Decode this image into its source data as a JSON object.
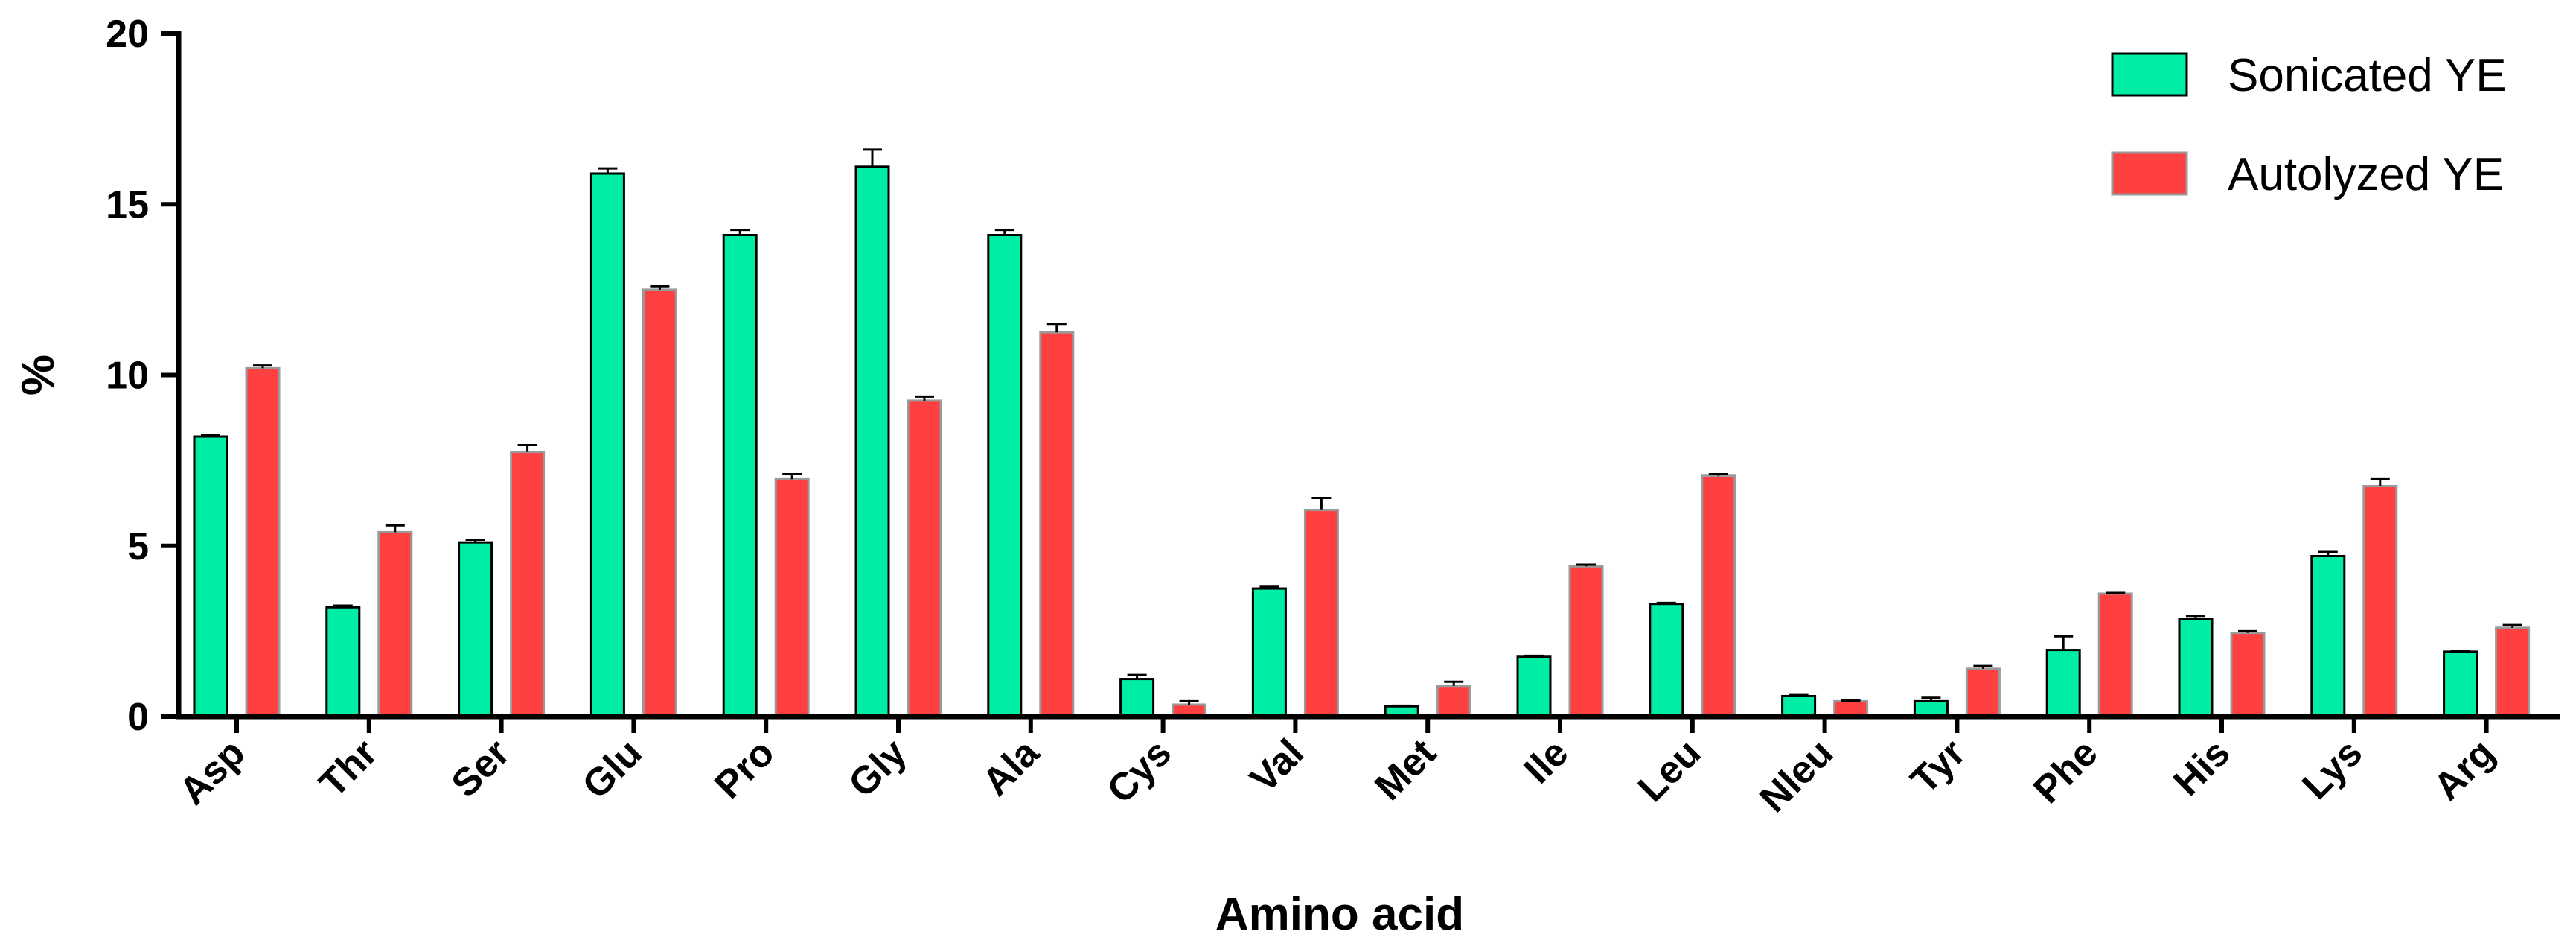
{
  "chart_data": {
    "type": "bar",
    "title": "",
    "xlabel": "Amino acid",
    "ylabel": "%",
    "ylim": [
      0,
      20
    ],
    "yticks": [
      0,
      5,
      10,
      15,
      20
    ],
    "categories": [
      "Asp",
      "Thr",
      "Ser",
      "Glu",
      "Pro",
      "Gly",
      "Ala",
      "Cys",
      "Val",
      "Met",
      "Ile",
      "Leu",
      "Nleu",
      "Tyr",
      "Phe",
      "His",
      "Lys",
      "Arg"
    ],
    "series": [
      {
        "name": "Sonicated YE",
        "color": "#00EDA5",
        "values": [
          8.2,
          3.2,
          5.1,
          15.9,
          14.1,
          16.1,
          14.1,
          1.1,
          3.75,
          0.3,
          1.75,
          3.3,
          0.6,
          0.45,
          1.95,
          2.85,
          4.7,
          1.9
        ],
        "errors": [
          0.05,
          0.05,
          0.08,
          0.15,
          0.15,
          0.5,
          0.15,
          0.12,
          0.05,
          0.02,
          0.03,
          0.03,
          0.03,
          0.1,
          0.4,
          0.1,
          0.12,
          0.03
        ]
      },
      {
        "name": "Autolyzed YE",
        "color": "#FF4040",
        "values": [
          10.2,
          5.4,
          7.75,
          12.5,
          6.95,
          9.25,
          11.25,
          0.35,
          6.05,
          0.9,
          4.4,
          7.05,
          0.45,
          1.4,
          3.6,
          2.45,
          6.75,
          2.6
        ],
        "errors": [
          0.08,
          0.2,
          0.2,
          0.1,
          0.15,
          0.12,
          0.25,
          0.1,
          0.35,
          0.12,
          0.05,
          0.05,
          0.02,
          0.08,
          0.02,
          0.05,
          0.2,
          0.08
        ]
      }
    ],
    "legend_position": "top-right",
    "grid": false
  }
}
